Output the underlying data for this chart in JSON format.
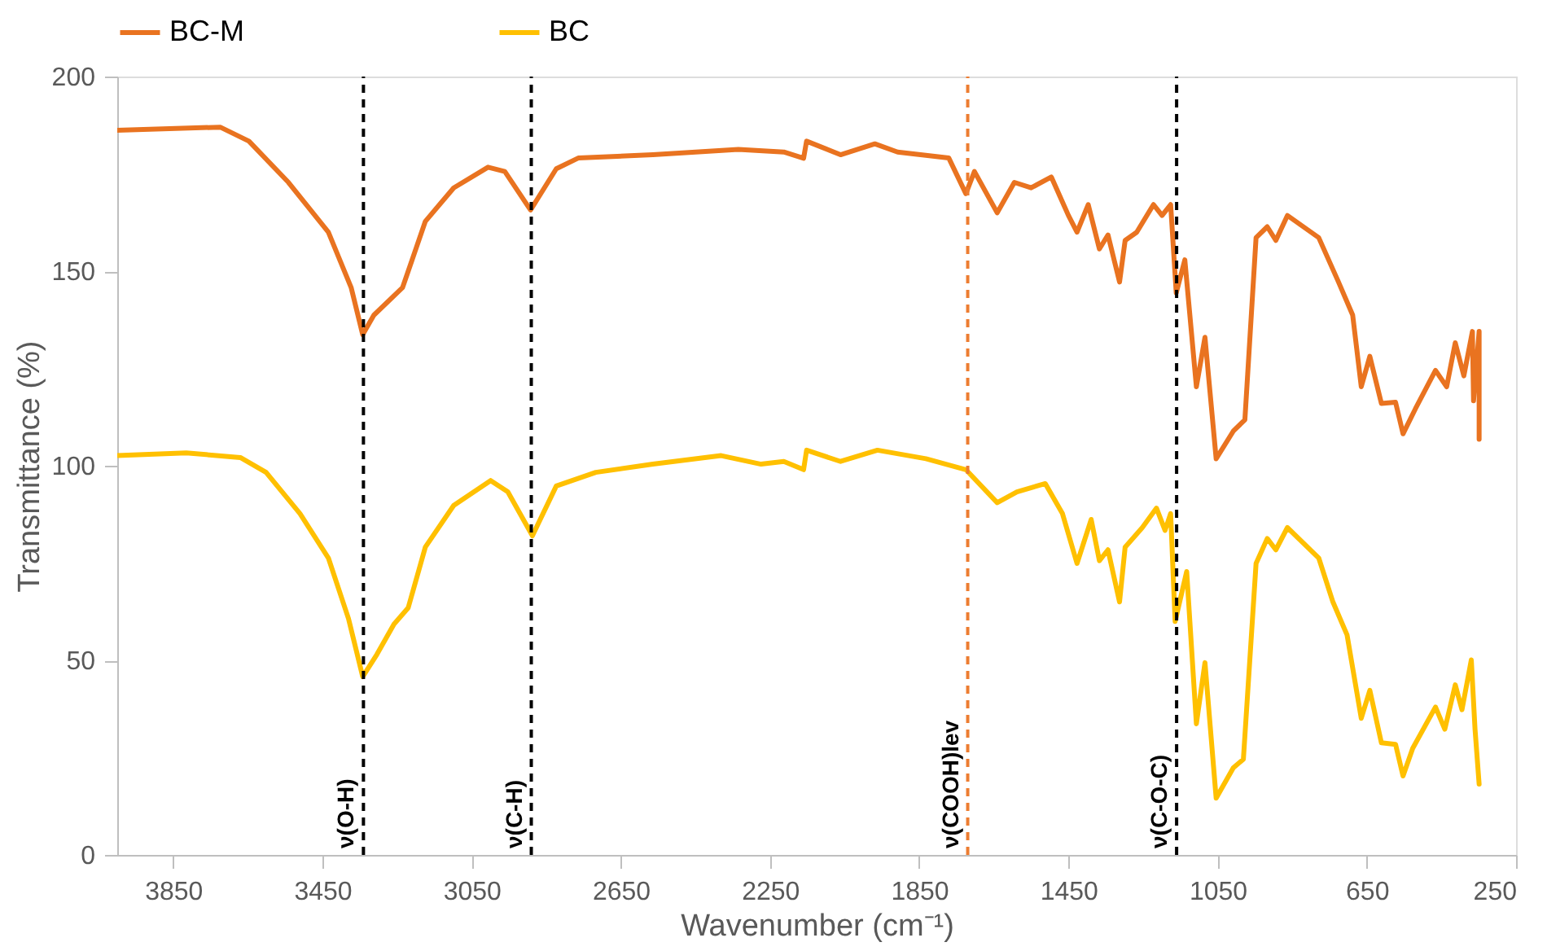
{
  "chart_data": {
    "type": "line",
    "xlabel": "Wavenumber (cm⁻¹)",
    "ylabel": "Transmittance (%)",
    "xlim": [
      4000,
      250
    ],
    "xticks": [
      3850,
      3450,
      3050,
      2650,
      2250,
      1850,
      1450,
      1050,
      650,
      250
    ],
    "ylim": [
      0,
      200
    ],
    "yticks": [
      0,
      50,
      100,
      150,
      200
    ],
    "grid": false,
    "legend": "top",
    "line_style": "solid",
    "marker": "none",
    "series": [
      {
        "name": "BC-M",
        "color": "#e97320",
        "x": [
          4000,
          3724,
          3647,
          3541,
          3434,
          3373,
          3342,
          3312,
          3235,
          3174,
          3098,
          3006,
          2961,
          2892,
          2823,
          2763,
          2564,
          2335,
          2213,
          2160,
          2152,
          2061,
          1969,
          1908,
          1771,
          1725,
          1702,
          1641,
          1595,
          1550,
          1496,
          1450,
          1427,
          1397,
          1367,
          1344,
          1313,
          1298,
          1267,
          1222,
          1199,
          1176,
          1161,
          1138,
          1107,
          1084,
          1054,
          1008,
          977,
          947,
          917,
          894,
          863,
          779,
          726,
          688,
          665,
          642,
          611,
          573,
          553,
          520,
          466,
          436,
          413,
          390,
          367,
          364,
          349,
          349
        ],
        "values": [
          186.2,
          187,
          183.4,
          172.8,
          160,
          145.8,
          133.7,
          138.7,
          145.8,
          162.8,
          171.4,
          176.7,
          175.6,
          165.7,
          176.3,
          179.1,
          179.9,
          181.3,
          180.6,
          179,
          183.4,
          179.9,
          182.7,
          180.6,
          179.1,
          169.9,
          175.6,
          165,
          172.8,
          171.4,
          174.2,
          164.3,
          160,
          167.1,
          155.7,
          159.3,
          147.2,
          157.9,
          160,
          167.1,
          164.3,
          167.1,
          144.4,
          152.9,
          120.3,
          133,
          101.8,
          108.9,
          111.8,
          158.6,
          161.4,
          157.9,
          164.3,
          158.6,
          147.2,
          138.7,
          120.3,
          128.1,
          116,
          116.3,
          108.2,
          114.6,
          124.5,
          120.3,
          131.6,
          123.1,
          134.5,
          116.7,
          134.5,
          106.8
        ]
      },
      {
        "name": "BC",
        "color": "#ffc000",
        "x": [
          4000,
          3815,
          3670,
          3601,
          3510,
          3434,
          3380,
          3342,
          3304,
          3258,
          3220,
          3174,
          3098,
          2999,
          2953,
          2887,
          2823,
          2717,
          2564,
          2381,
          2274,
          2213,
          2160,
          2152,
          2061,
          1962,
          1832,
          1725,
          1641,
          1588,
          1512,
          1466,
          1427,
          1389,
          1367,
          1344,
          1313,
          1298,
          1252,
          1214,
          1191,
          1176,
          1164,
          1133,
          1107,
          1084,
          1054,
          1008,
          981,
          947,
          917,
          894,
          863,
          779,
          741,
          703,
          665,
          642,
          611,
          573,
          553,
          527,
          466,
          441,
          413,
          395,
          370,
          360,
          349
        ],
        "values": [
          102.6,
          103.3,
          102.1,
          98.3,
          87.7,
          76.3,
          60.7,
          45.8,
          51.5,
          59.3,
          63.5,
          79.1,
          89.8,
          96.2,
          93.3,
          82,
          94.8,
          98.3,
          100.4,
          102.6,
          100.4,
          101.1,
          99,
          104,
          101.1,
          104,
          101.8,
          99,
          90.5,
          93.3,
          95.4,
          87.7,
          74.9,
          86.2,
          75.6,
          78.4,
          65,
          79.1,
          84.1,
          89.1,
          83.4,
          87.7,
          60,
          72.8,
          33.7,
          49.4,
          14.6,
          22.4,
          24.6,
          74.9,
          81.3,
          78.4,
          84.1,
          76.3,
          65,
          56.5,
          35.1,
          42.3,
          28.8,
          28.4,
          20.3,
          27.4,
          38,
          32.3,
          43.7,
          37.3,
          50.1,
          32.3,
          18.2
        ]
      }
    ],
    "ref_lines": [
      {
        "axis": "x",
        "value": 3340,
        "label": "ν(O-H)",
        "color": "#000000",
        "line_style": "dashed"
      },
      {
        "axis": "x",
        "value": 2890,
        "label": "ν(C-H)",
        "color": "#000000",
        "line_style": "dashed"
      },
      {
        "axis": "x",
        "value": 1720,
        "label": "ν(COOH)lev",
        "color": "#ed7d31",
        "line_style": "dashed"
      },
      {
        "axis": "x",
        "value": 1160,
        "label": "ν(C-O-C)",
        "color": "#000000",
        "line_style": "dashed"
      }
    ]
  }
}
